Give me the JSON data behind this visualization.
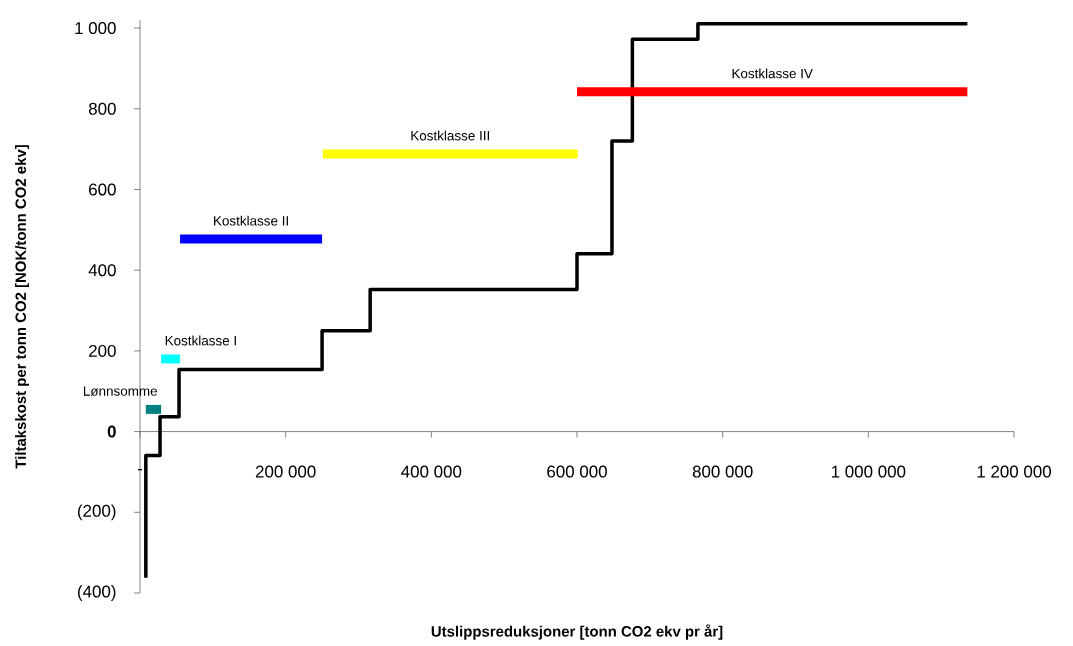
{
  "chart_data": {
    "type": "step",
    "xlabel": "Utslippsreduksjoner [tonn CO2 ekv pr år]",
    "ylabel": "Tiltakskost per tonn CO2 [NOK/tonn CO2 ekv]",
    "xlim": [
      0,
      1200000
    ],
    "ylim": [
      -400,
      1020
    ],
    "xticks": [
      {
        "value": 0,
        "label": "-"
      },
      {
        "value": 200000,
        "label": "200 000"
      },
      {
        "value": 400000,
        "label": "400 000"
      },
      {
        "value": 600000,
        "label": "600 000"
      },
      {
        "value": 800000,
        "label": "800 000"
      },
      {
        "value": 1000000,
        "label": "1 000 000"
      },
      {
        "value": 1200000,
        "label": "1 200 000"
      }
    ],
    "yticks": [
      {
        "value": -400,
        "label": "(400)"
      },
      {
        "value": -200,
        "label": "(200)"
      },
      0,
      200,
      400,
      600,
      800,
      {
        "value": 1000,
        "label": "1 000"
      }
    ],
    "marker": "none",
    "series": [
      {
        "color": "#000000",
        "x": [
          8000,
          8000,
          27500,
          53600,
          250000,
          316000,
          600000,
          648000,
          676000,
          766000,
          1136000
        ],
        "values": [
          -362,
          -59,
          37,
          154,
          250,
          352,
          441,
          720,
          972,
          1011,
          1011
        ]
      },
      {
        "type": "line",
        "name": "Lønnsomme",
        "color": "#008080",
        "x": [
          8000,
          29000
        ],
        "values": [
          55,
          55
        ]
      },
      {
        "type": "line",
        "name": "Kostklasse I",
        "color": "#00ffff",
        "x": [
          29000,
          55000
        ],
        "values": [
          180,
          180
        ]
      },
      {
        "type": "line",
        "name": "Kostklasse II",
        "color": "#0000ff",
        "x": [
          55000,
          250000
        ],
        "values": [
          477,
          477
        ]
      },
      {
        "type": "line",
        "name": "Kostklasse III",
        "color": "#ffff00",
        "x": [
          251000,
          601000
        ],
        "values": [
          688,
          688
        ]
      },
      {
        "type": "line",
        "name": "Kostklasse IV",
        "color": "#ff0000",
        "x": [
          600000,
          1136000
        ],
        "values": [
          842,
          842
        ]
      }
    ]
  }
}
